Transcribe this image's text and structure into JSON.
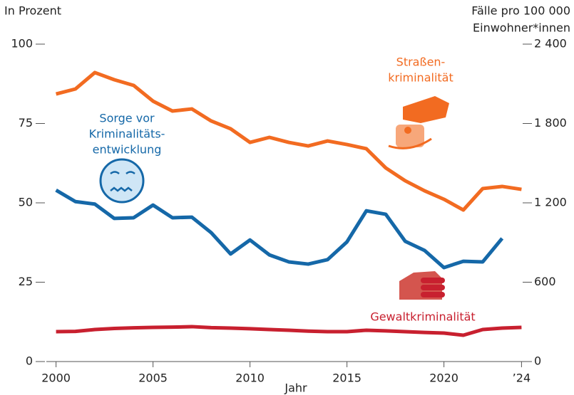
{
  "chart_data": {
    "type": "line",
    "y_label": "In Prozent",
    "y2_label_lines": [
      "Fälle pro 100 000",
      "Einwohner*innen"
    ],
    "x_label": "Jahr",
    "x": [
      2000,
      2001,
      2002,
      2003,
      2004,
      2005,
      2006,
      2007,
      2008,
      2009,
      2010,
      2011,
      2012,
      2013,
      2014,
      2015,
      2016,
      2017,
      2018,
      2019,
      2020,
      2021,
      2022,
      2023,
      2024
    ],
    "xlim": [
      1999.5,
      2024.5
    ],
    "xticks": [
      2000,
      2005,
      2010,
      2015,
      2020,
      {
        "value": 2024,
        "label": "’24"
      }
    ],
    "ylim": [
      0,
      100
    ],
    "yticks": [
      0,
      25,
      50,
      75,
      100
    ],
    "y2lim": [
      0,
      2400
    ],
    "y2ticks": [
      0,
      600,
      {
        "value": 1200,
        "label": "1 200"
      },
      {
        "value": 1800,
        "label": "1 800"
      },
      {
        "value": 2400,
        "label": "2 400"
      }
    ],
    "series": [
      {
        "label_lines": [
          "Sorge vor",
          "Kriminalitäts-",
          "entwicklung"
        ],
        "color": "#1568a8",
        "axis": "y",
        "values": [
          54.0,
          50.4,
          49.6,
          45.1,
          45.3,
          49.3,
          45.3,
          45.5,
          40.6,
          33.9,
          38.3,
          33.6,
          31.4,
          30.7,
          32.1,
          37.7,
          47.5,
          46.4,
          37.9,
          35.0,
          29.6,
          31.6,
          31.4,
          38.8,
          null
        ]
      },
      {
        "label_lines": [
          "Straßen-",
          "kriminalität"
        ],
        "color": "#f26b21",
        "axis": "y2",
        "values": [
          2023,
          2061,
          2185,
          2131,
          2088,
          1969,
          1894,
          1910,
          1819,
          1760,
          1657,
          1695,
          1657,
          1630,
          1668,
          1641,
          1609,
          1464,
          1367,
          1291,
          1227,
          1146,
          1308,
          1324,
          1302
        ]
      },
      {
        "label_lines": [
          "Gewaltkriminalität"
        ],
        "color": "#c8202f",
        "axis": "y2",
        "values": [
          226,
          228,
          242,
          250,
          255,
          258,
          260,
          264,
          256,
          253,
          248,
          242,
          237,
          230,
          226,
          226,
          237,
          232,
          226,
          220,
          215,
          199,
          242,
          253,
          258
        ]
      }
    ]
  }
}
